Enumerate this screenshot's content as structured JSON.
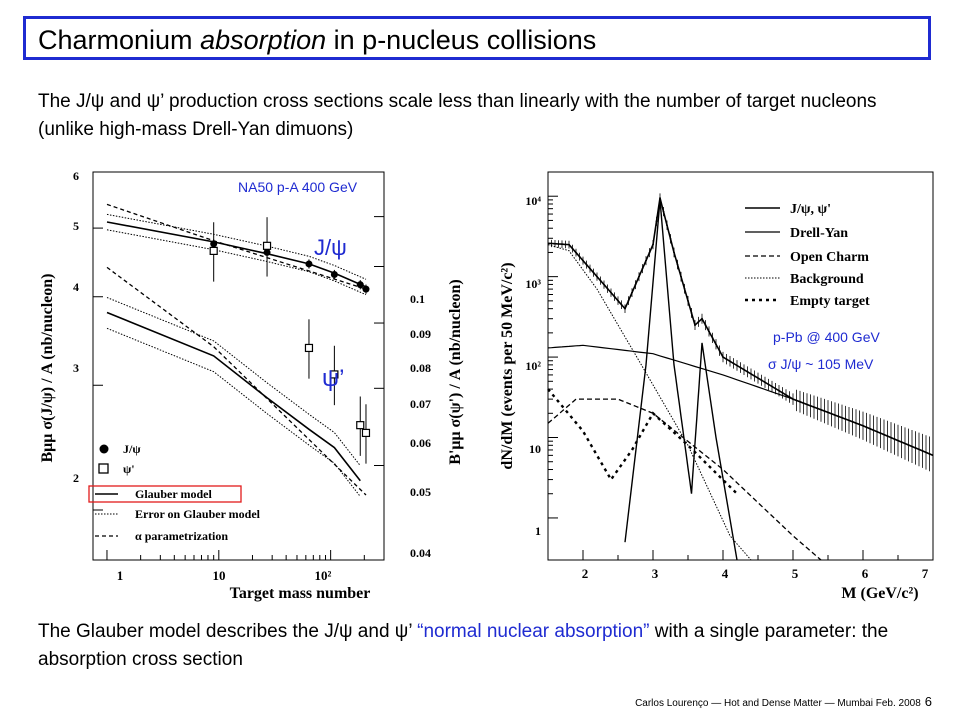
{
  "slide": {
    "title_pre": "Charmonium ",
    "title_em": "absorption",
    "title_post": " in p-nucleus collisions",
    "para1": "The J/ψ and ψ’ production cross sections scale less than linearly with the number of target nucleons (unlike high-mass Drell-Yan dimuons)",
    "para2_a": "The Glauber model describes the J/ψ and ψ’ ",
    "para2_q": "“normal nuclear absorption”",
    "para2_b": " with a single parameter: the absorption cross section",
    "footer": "Carlos Lourenço — Hot and Dense Matter — Mumbai Feb. 2008",
    "page": "6"
  },
  "colors": {
    "accent_blue": "#1f2bd1",
    "highlight_red": "#e21b1b",
    "text": "#000000"
  },
  "chart_data": [
    {
      "type": "scatter",
      "annotation": "NA50 p-A 400 GeV",
      "xlabel": "Target mass number",
      "ylabel_left": "Bμμ σ(J/ψ) / A (nb/nucleon)",
      "ylabel_right": "B'μμ σ(ψ') / A (nb/nucleon)",
      "x_scale": "log",
      "xlim": [
        0.75,
        300
      ],
      "y_scale": "log",
      "ylim_left": [
        1.7,
        6.0
      ],
      "ylim_right": [
        0.04,
        0.1
      ],
      "x_ticks": [
        "1",
        "10",
        "10²"
      ],
      "y_ticks_left": [
        "2",
        "3",
        "4",
        "5",
        "6"
      ],
      "y_ticks_right": [
        "0.04",
        "0.05",
        "0.06",
        "0.07",
        "0.08",
        "0.09",
        "0.1"
      ],
      "curve_labels": {
        "jpsi": "J/ψ",
        "psip": "ψ’"
      },
      "legend": [
        "J/ψ",
        "ψ'",
        "Glauber model",
        "Error on Glauber model",
        "α parametrization"
      ],
      "legend_highlight": "Glauber model",
      "series": [
        {
          "name": "J/ψ",
          "marker": "filled-circle",
          "points": [
            [
              9,
              4.75
            ],
            [
              27,
              4.62
            ],
            [
              64,
              4.45
            ],
            [
              108,
              4.3
            ],
            [
              184,
              4.16
            ],
            [
              207,
              4.1
            ]
          ]
        },
        {
          "name": "ψ'",
          "marker": "open-square",
          "points": [
            [
              9,
              0.083
            ],
            [
              27,
              0.084
            ],
            [
              64,
              0.066
            ],
            [
              108,
              0.062
            ],
            [
              184,
              0.055
            ],
            [
              207,
              0.054
            ]
          ]
        }
      ],
      "glauber_jpsi": [
        [
          1,
          5.1
        ],
        [
          9,
          4.78
        ],
        [
          27,
          4.6
        ],
        [
          64,
          4.45
        ],
        [
          108,
          4.32
        ],
        [
          207,
          4.13
        ]
      ],
      "alpha_jpsi": [
        [
          1,
          5.4
        ],
        [
          9,
          4.8
        ],
        [
          207,
          4.1
        ]
      ],
      "glauber_psip": [
        [
          1,
          3.8
        ],
        [
          9,
          3.3
        ],
        [
          27,
          2.88
        ],
        [
          64,
          2.6
        ],
        [
          108,
          2.45
        ],
        [
          184,
          2.2
        ]
      ],
      "alpha_psip": [
        [
          1,
          4.4
        ],
        [
          9,
          3.4
        ],
        [
          207,
          2.1
        ]
      ]
    },
    {
      "type": "line",
      "annotation": "p-Pb @ 400 GeV",
      "annotation2": "σ J/ψ ~ 105 MeV",
      "xlabel": "M (GeV/c²)",
      "ylabel": "dN/dM (events per 50 MeV/c²)",
      "xlim": [
        1.5,
        7.0
      ],
      "y_scale": "log",
      "ylim": [
        0.3,
        20000
      ],
      "x_ticks": [
        "2",
        "3",
        "4",
        "5",
        "6",
        "7"
      ],
      "y_ticks": [
        "1",
        "10",
        "10²",
        "10³",
        "10⁴"
      ],
      "legend": [
        "J/ψ, ψ'",
        "Drell-Yan",
        "Open Charm",
        "Background",
        "Empty target"
      ],
      "series": [
        {
          "name": "J/ψ, ψ'",
          "points": [
            [
              2.6,
              0.5
            ],
            [
              2.9,
              80
            ],
            [
              3.1,
              9000
            ],
            [
              3.3,
              80
            ],
            [
              3.55,
              2
            ],
            [
              3.7,
              150
            ],
            [
              3.9,
              10
            ],
            [
              4.2,
              0.3
            ]
          ]
        },
        {
          "name": "Drell-Yan",
          "points": [
            [
              1.5,
              130
            ],
            [
              2,
              140
            ],
            [
              3,
              110
            ],
            [
              4,
              60
            ],
            [
              5,
              30
            ],
            [
              6,
              14
            ],
            [
              7,
              6
            ]
          ]
        },
        {
          "name": "Open Charm",
          "points": [
            [
              1.5,
              15
            ],
            [
              1.9,
              30
            ],
            [
              2.5,
              30
            ],
            [
              3,
              20
            ],
            [
              4,
              4
            ],
            [
              5,
              0.6
            ],
            [
              5.4,
              0.3
            ]
          ]
        },
        {
          "name": "Background",
          "points": [
            [
              1.5,
              2500
            ],
            [
              1.8,
              2100
            ],
            [
              2.2,
              700
            ],
            [
              2.8,
              90
            ],
            [
              3.5,
              8
            ],
            [
              4.1,
              0.6
            ],
            [
              4.4,
              0.3
            ]
          ]
        },
        {
          "name": "Empty target",
          "points": [
            [
              1.5,
              40
            ],
            [
              2,
              12
            ],
            [
              2.4,
              3
            ],
            [
              2.7,
              7
            ],
            [
              3,
              20
            ],
            [
              3.5,
              8
            ],
            [
              4.2,
              2
            ]
          ]
        },
        {
          "name": "total",
          "points": [
            [
              1.5,
              2600
            ],
            [
              1.8,
              2500
            ],
            [
              2.2,
              1000
            ],
            [
              2.6,
              400
            ],
            [
              3,
              2500
            ],
            [
              3.1,
              9500
            ],
            [
              3.3,
              2000
            ],
            [
              3.6,
              250
            ],
            [
              3.7,
              300
            ],
            [
              4,
              100
            ],
            [
              5,
              30
            ],
            [
              6,
              14
            ],
            [
              7,
              6
            ]
          ]
        }
      ]
    }
  ]
}
